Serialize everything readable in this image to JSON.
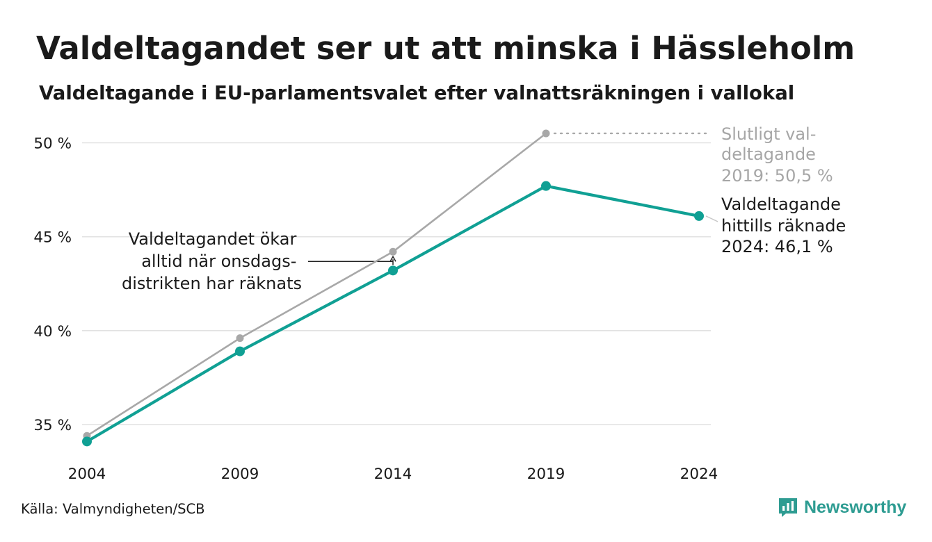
{
  "title": "Valdeltagandet ser ut att minska i Hässleholm",
  "subtitle": "Valdeltagande i EU-parlamentsvalet efter valnattsräkningen i vallokal",
  "source": "Källa: Valmyndigheten/SCB",
  "brand": "Newsworthy",
  "colors": {
    "counted": "#10a094",
    "final": "#a8a8a8",
    "grid": "#e2e2e2",
    "final_label": "#a6a6a6",
    "text": "#1a1a1a",
    "brand": "#2e9c92"
  },
  "icons": {
    "brand_logo": "newsworthy-logo-icon"
  },
  "chart_data": {
    "type": "line",
    "title": "Valdeltagandet ser ut att minska i Hässleholm",
    "subtitle": "Valdeltagande i EU-parlamentsvalet efter valnattsräkningen i vallokal",
    "x": [
      2004,
      2009,
      2014,
      2019,
      2024
    ],
    "xticks": [
      "2004",
      "2009",
      "2014",
      "2019",
      "2024"
    ],
    "ylim": [
      33.5,
      51.2
    ],
    "yticks": [
      35,
      40,
      45,
      50
    ],
    "ytick_labels": [
      "35 %",
      "40 %",
      "45 %",
      "50 %"
    ],
    "grid": true,
    "series": [
      {
        "key": "final",
        "values": [
          34.4,
          39.6,
          44.2,
          50.5,
          null
        ]
      },
      {
        "key": "counted",
        "values": [
          34.1,
          38.9,
          43.2,
          47.7,
          46.1
        ]
      }
    ],
    "annotations": {
      "final_label": [
        "Slutligt val-",
        "deltagande",
        "2019: 50,5 %"
      ],
      "counted_label": [
        "Valdeltagande",
        "hittills räknade",
        "2024: 46,1 %"
      ],
      "wednesday_note": [
        "Valdeltagandet ökar",
        "alltid när onsdags-",
        "distrikten har räknats"
      ]
    }
  }
}
